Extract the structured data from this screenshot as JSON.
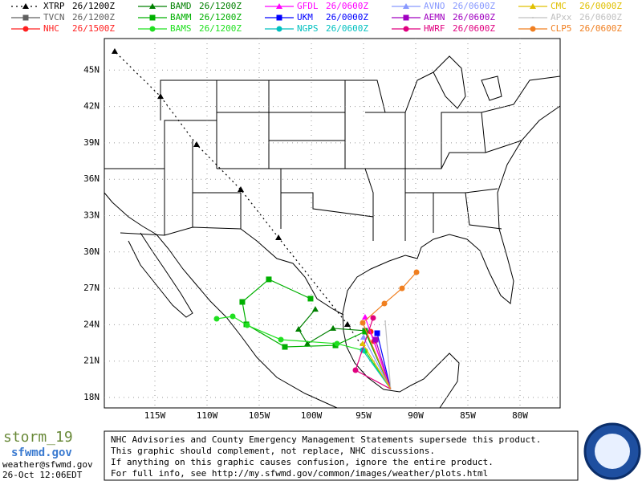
{
  "map": {
    "lon_ticks": [
      {
        "value": -115,
        "label": "115W"
      },
      {
        "value": -110,
        "label": "110W"
      },
      {
        "value": -105,
        "label": "105W"
      },
      {
        "value": -100,
        "label": "100W"
      },
      {
        "value": -95,
        "label": "95W"
      },
      {
        "value": -90,
        "label": "90W"
      },
      {
        "value": -85,
        "label": "85W"
      },
      {
        "value": -80,
        "label": "80W"
      }
    ],
    "lat_ticks": [
      {
        "value": 45,
        "label": "45N"
      },
      {
        "value": 42,
        "label": "42N"
      },
      {
        "value": 39,
        "label": "39N"
      },
      {
        "value": 36,
        "label": "36N"
      },
      {
        "value": 33,
        "label": "33N"
      },
      {
        "value": 30,
        "label": "30N"
      },
      {
        "value": 27,
        "label": "27N"
      },
      {
        "value": 24,
        "label": "24N"
      },
      {
        "value": 21,
        "label": "21N"
      },
      {
        "value": 18,
        "label": "18N"
      }
    ],
    "tracks": [
      {
        "name": "XTRP",
        "time": "26/1200Z",
        "color": "#000000",
        "marker": "triangle",
        "dashed": true,
        "lon": [
          -92.4,
          -96.54,
          -103.15,
          -106.77,
          -111.0,
          -114.46,
          -118.85
        ],
        "lat": [
          18.7,
          24.03,
          31.18,
          35.15,
          38.86,
          42.83,
          46.54
        ]
      },
      {
        "name": "TVCN",
        "time": "26/1200Z",
        "color": "#606060",
        "marker": "square",
        "lon": [
          -92.4,
          -94.85
        ],
        "lat": [
          18.7,
          23.5
        ]
      },
      {
        "name": "NHC",
        "time": "26/1500Z",
        "color": "#ff2020",
        "marker": "circle",
        "lon": [
          -92.4,
          -94.0,
          -94.31
        ],
        "lat": [
          18.7,
          22.64,
          23.43
        ]
      },
      {
        "name": "BAMD",
        "time": "26/1200Z",
        "color": "#008000",
        "marker": "triangle",
        "lon": [
          -92.4,
          -94.77,
          -97.92,
          -100.38,
          -101.23,
          -99.62
        ],
        "lat": [
          18.7,
          23.5,
          23.7,
          22.44,
          23.63,
          25.28
        ]
      },
      {
        "name": "BAMM",
        "time": "26/1200Z",
        "color": "#00b000",
        "marker": "square",
        "lon": [
          -92.4,
          -94.85,
          -97.69,
          -102.54,
          -106.23,
          -106.62,
          -104.08,
          -100.08
        ],
        "lat": [
          18.7,
          23.43,
          22.3,
          22.17,
          24.03,
          25.88,
          27.74,
          26.15
        ]
      },
      {
        "name": "BAMS",
        "time": "26/1200Z",
        "color": "#20e020",
        "marker": "circle",
        "lon": [
          -92.4,
          -94.85,
          -97.54,
          -102.92,
          -106.15,
          -107.54,
          -109.08
        ],
        "lat": [
          18.7,
          21.84,
          22.44,
          22.77,
          23.96,
          24.69,
          24.49
        ]
      },
      {
        "name": "GFDL",
        "time": "26/0600Z",
        "color": "#ff00ff",
        "marker": "triangle",
        "lon": [
          -92.4,
          -94.85
        ],
        "lat": [
          18.7,
          24.62
        ]
      },
      {
        "name": "UKM",
        "time": "26/0000Z",
        "color": "#0000ff",
        "marker": "square",
        "lon": [
          -92.4,
          -93.69
        ],
        "lat": [
          18.7,
          23.3
        ]
      },
      {
        "name": "NGPS",
        "time": "26/0600Z",
        "color": "#00c0c0",
        "marker": "circle",
        "lon": [
          -92.4,
          -95.08
        ],
        "lat": [
          18.7,
          21.9
        ]
      },
      {
        "name": "AVNO",
        "time": "26/0600Z",
        "color": "#8899ff",
        "marker": "triangle",
        "lon": [
          -92.4,
          -95.0
        ],
        "lat": [
          18.7,
          22.97
        ]
      },
      {
        "name": "AEMN",
        "time": "26/0600Z",
        "color": "#a000c0",
        "marker": "square",
        "lon": [
          -92.4,
          -93.85
        ],
        "lat": [
          18.7,
          22.77
        ]
      },
      {
        "name": "HWRF",
        "time": "26/0600Z",
        "color": "#e0007f",
        "marker": "circle",
        "lon": [
          -92.4,
          -95.77,
          -94.08
        ],
        "lat": [
          18.7,
          20.25,
          24.56
        ]
      },
      {
        "name": "CMC",
        "time": "26/0000Z",
        "color": "#e0c000",
        "marker": "triangle",
        "lon": [
          -92.4,
          -95.08
        ],
        "lat": [
          18.7,
          22.44
        ]
      },
      {
        "name": "APxx",
        "time": "26/0600Z",
        "color": "#c0c0c0",
        "marker": "none",
        "lon": [
          -92.4,
          -92.92
        ],
        "lat": [
          18.7,
          24.29
        ]
      },
      {
        "name": "CLP5",
        "time": "26/0600Z",
        "color": "#f07f20",
        "marker": "circle",
        "lon": [
          -92.4,
          -95.08,
          -93.0,
          -91.31,
          -89.92
        ],
        "lat": [
          18.7,
          24.16,
          25.75,
          27.0,
          28.33
        ]
      }
    ]
  },
  "footer": {
    "logo": "storm_19",
    "site": "sfwmd.gov",
    "email": "weather@sfwmd.gov",
    "timestamp": "26-Oct 12:06EDT",
    "notice": [
      "NHC Advisories and County Emergency Management Statements supersede this product.",
      "This graphic should complement, not replace, NHC discussions.",
      "If anything on this graphic causes confusion, ignore the entire product.",
      "For full info, see  http://my.sfwmd.gov/common/images/weather/plots.html"
    ]
  }
}
